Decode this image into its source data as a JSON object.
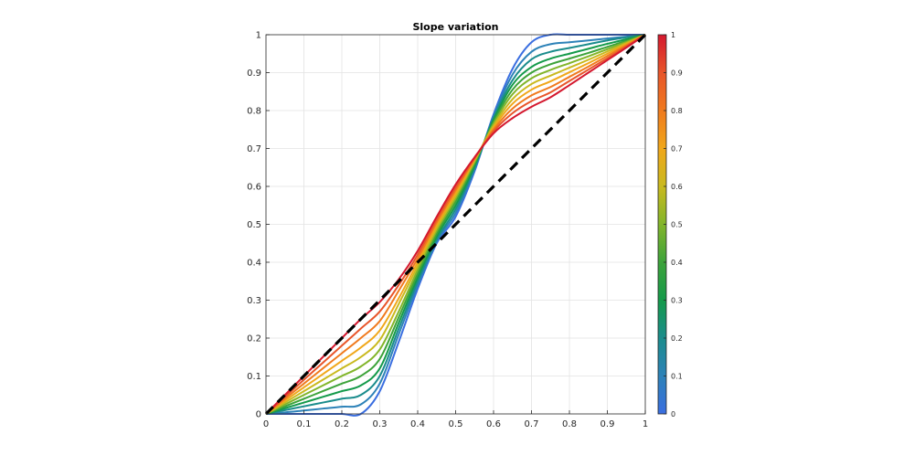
{
  "chart_data": {
    "type": "line",
    "title": "Slope variation",
    "xlabel": "",
    "ylabel": "",
    "xlim": [
      0,
      1
    ],
    "ylim": [
      0,
      1
    ],
    "xticks": [
      "0",
      "0.1",
      "0.2",
      "0.3",
      "0.4",
      "0.5",
      "0.6",
      "0.7",
      "0.8",
      "0.9",
      "1"
    ],
    "yticks": [
      "0",
      "0.1",
      "0.2",
      "0.3",
      "0.4",
      "0.5",
      "0.6",
      "0.7",
      "0.8",
      "0.9",
      "1"
    ],
    "grid": true,
    "x": [
      0,
      0.05,
      0.1,
      0.15,
      0.2,
      0.25,
      0.3,
      0.35,
      0.4,
      0.45,
      0.5,
      0.55,
      0.6,
      0.65,
      0.7,
      0.75,
      0.8,
      0.85,
      0.9,
      0.95,
      1
    ],
    "series": [
      {
        "slope": 0.0,
        "color": "#3a6ee0",
        "values": [
          0,
          0,
          0,
          0,
          0,
          0,
          0.06,
          0.19,
          0.33,
          0.45,
          0.52,
          0.64,
          0.79,
          0.91,
          0.98,
          1,
          1,
          1,
          1,
          1,
          1
        ]
      },
      {
        "slope": 0.1,
        "color": "#2d82b8",
        "values": [
          0,
          0.004,
          0.009,
          0.014,
          0.019,
          0.025,
          0.08,
          0.21,
          0.34,
          0.455,
          0.53,
          0.645,
          0.785,
          0.895,
          0.955,
          0.975,
          0.98,
          0.985,
          0.99,
          0.995,
          1
        ]
      },
      {
        "slope": 0.2,
        "color": "#1a8c8c",
        "values": [
          0,
          0.01,
          0.02,
          0.03,
          0.04,
          0.05,
          0.1,
          0.225,
          0.35,
          0.46,
          0.54,
          0.65,
          0.78,
          0.88,
          0.935,
          0.955,
          0.965,
          0.975,
          0.985,
          0.993,
          1
        ]
      },
      {
        "slope": 0.3,
        "color": "#149a4a",
        "values": [
          0,
          0.015,
          0.03,
          0.045,
          0.06,
          0.075,
          0.12,
          0.24,
          0.36,
          0.468,
          0.55,
          0.655,
          0.775,
          0.868,
          0.915,
          0.937,
          0.95,
          0.963,
          0.976,
          0.988,
          1
        ]
      },
      {
        "slope": 0.4,
        "color": "#3da33a",
        "values": [
          0,
          0.02,
          0.04,
          0.06,
          0.08,
          0.1,
          0.145,
          0.255,
          0.37,
          0.475,
          0.56,
          0.66,
          0.77,
          0.855,
          0.9,
          0.922,
          0.937,
          0.952,
          0.968,
          0.984,
          1
        ]
      },
      {
        "slope": 0.5,
        "color": "#82b52a",
        "values": [
          0,
          0.025,
          0.05,
          0.075,
          0.1,
          0.125,
          0.17,
          0.27,
          0.38,
          0.483,
          0.568,
          0.665,
          0.765,
          0.843,
          0.885,
          0.907,
          0.925,
          0.943,
          0.962,
          0.981,
          1
        ]
      },
      {
        "slope": 0.6,
        "color": "#c9b91e",
        "values": [
          0,
          0.03,
          0.06,
          0.09,
          0.12,
          0.15,
          0.195,
          0.29,
          0.39,
          0.49,
          0.575,
          0.668,
          0.76,
          0.83,
          0.87,
          0.892,
          0.913,
          0.934,
          0.956,
          0.978,
          1
        ]
      },
      {
        "slope": 0.7,
        "color": "#f0a71a",
        "values": [
          0,
          0.035,
          0.07,
          0.105,
          0.14,
          0.175,
          0.22,
          0.305,
          0.4,
          0.498,
          0.582,
          0.671,
          0.755,
          0.818,
          0.855,
          0.877,
          0.901,
          0.925,
          0.95,
          0.975,
          1
        ]
      },
      {
        "slope": 0.8,
        "color": "#f07a1e",
        "values": [
          0,
          0.04,
          0.08,
          0.12,
          0.16,
          0.2,
          0.245,
          0.325,
          0.41,
          0.505,
          0.59,
          0.673,
          0.75,
          0.805,
          0.84,
          0.862,
          0.889,
          0.916,
          0.944,
          0.972,
          1
        ]
      },
      {
        "slope": 0.9,
        "color": "#e8552a",
        "values": [
          0,
          0.045,
          0.09,
          0.135,
          0.18,
          0.225,
          0.27,
          0.34,
          0.42,
          0.512,
          0.597,
          0.675,
          0.745,
          0.793,
          0.825,
          0.848,
          0.878,
          0.908,
          0.938,
          0.969,
          1
        ]
      },
      {
        "slope": 1.0,
        "color": "#d4182e",
        "values": [
          0,
          0.05,
          0.1,
          0.15,
          0.2,
          0.25,
          0.295,
          0.355,
          0.43,
          0.52,
          0.605,
          0.677,
          0.74,
          0.78,
          0.81,
          0.835,
          0.867,
          0.9,
          0.933,
          0.966,
          1
        ]
      }
    ],
    "reference_line": {
      "style": "dashed",
      "color": "#000000",
      "x": [
        0,
        1
      ],
      "y": [
        0,
        1
      ]
    },
    "colorbar": {
      "range": [
        0,
        1
      ],
      "ticks": [
        "0",
        "0.1",
        "0.2",
        "0.3",
        "0.4",
        "0.5",
        "0.6",
        "0.7",
        "0.8",
        "0.9",
        "1"
      ],
      "colors": [
        "#3a6ee0",
        "#2d82b8",
        "#1a8c8c",
        "#149a4a",
        "#3da33a",
        "#82b52a",
        "#c9b91e",
        "#f0a71a",
        "#f07a1e",
        "#e8552a",
        "#d4182e"
      ]
    }
  }
}
